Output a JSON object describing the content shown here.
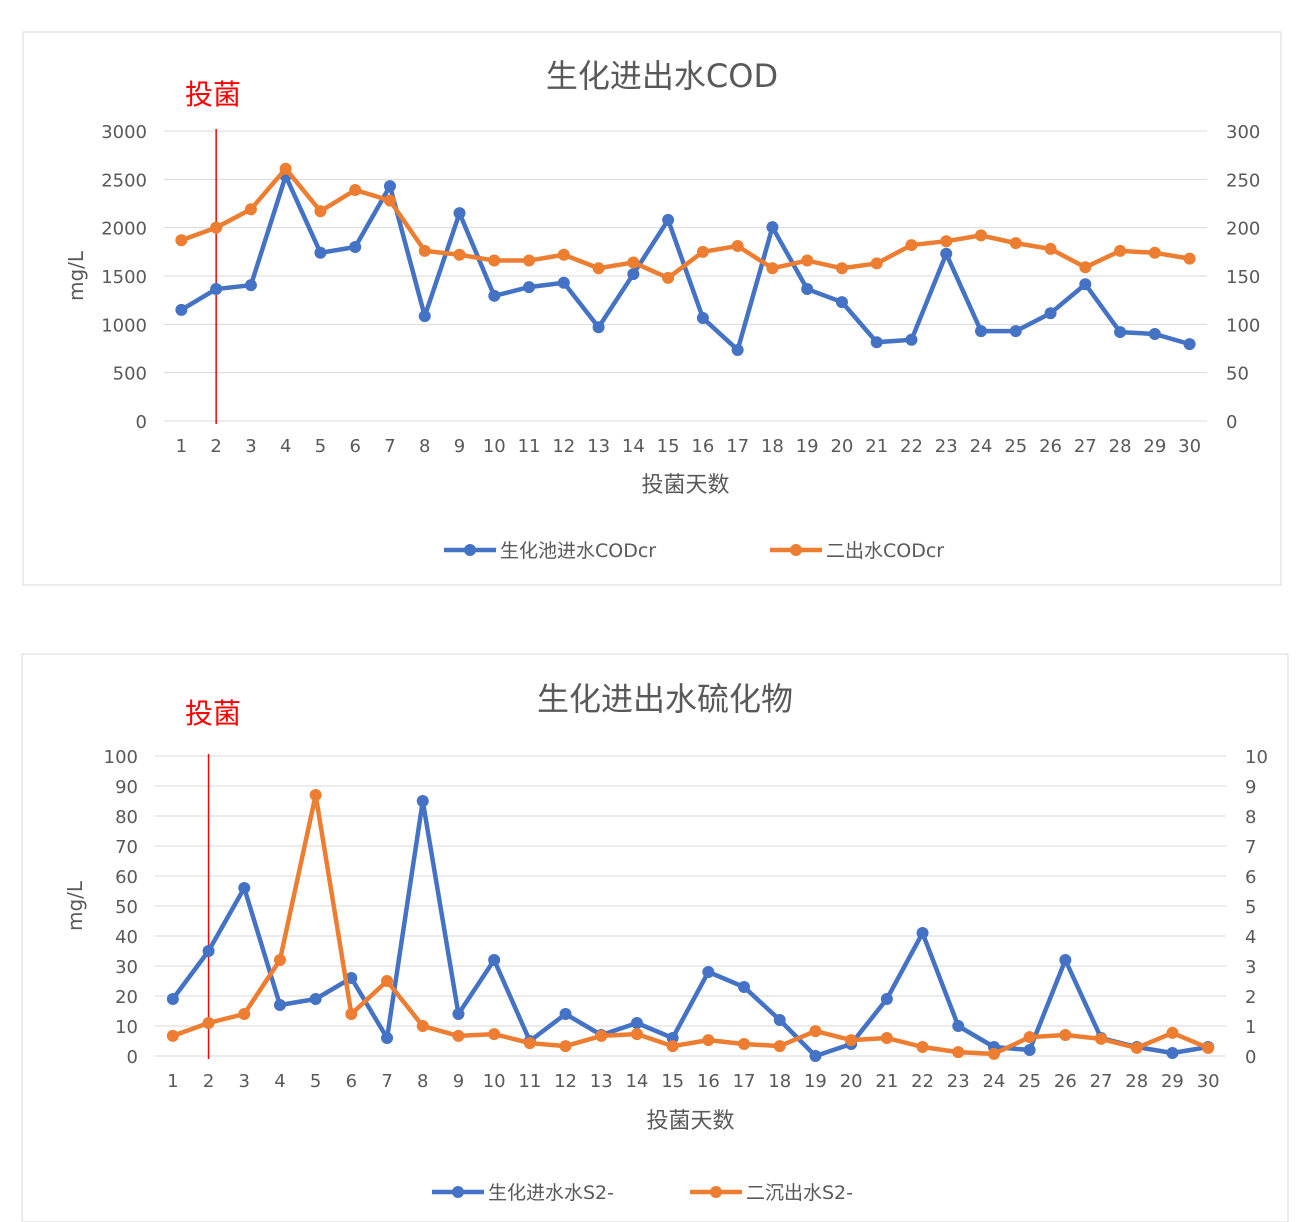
{
  "chart_data": [
    {
      "type": "line",
      "title": "生化进出水COD",
      "annotation": "投菌",
      "annotation_day": 2,
      "xlabel": "投菌天数",
      "ylabel": "mg/L",
      "categories": [
        1,
        2,
        3,
        4,
        5,
        6,
        7,
        8,
        9,
        10,
        11,
        12,
        13,
        14,
        15,
        16,
        17,
        18,
        19,
        20,
        21,
        22,
        23,
        24,
        25,
        26,
        27,
        28,
        29,
        30
      ],
      "ylim": [
        0,
        3000
      ],
      "yticks": [
        0,
        500,
        1000,
        1500,
        2000,
        2500,
        3000
      ],
      "y2lim": [
        0,
        300
      ],
      "y2ticks": [
        0,
        50,
        100,
        150,
        200,
        250,
        300
      ],
      "grid": true,
      "legend": "bottom",
      "series": [
        {
          "name": "生化池进水CODcr",
          "axis": "left",
          "color": "#4472C4",
          "values": [
            1150,
            1365,
            1405,
            2535,
            1740,
            1800,
            2430,
            1085,
            2150,
            1295,
            1385,
            1430,
            970,
            1520,
            2080,
            1065,
            735,
            2005,
            1365,
            1230,
            815,
            840,
            1730,
            930,
            930,
            1115,
            1415,
            920,
            900,
            795
          ]
        },
        {
          "name": "二出水CODcr",
          "axis": "right",
          "color": "#ED7D31",
          "values": [
            187,
            200,
            219,
            261,
            217,
            239,
            228,
            176,
            172,
            166,
            166,
            172,
            158,
            164,
            148,
            175,
            181,
            158,
            166,
            158,
            163,
            182,
            186,
            192,
            184,
            178,
            159,
            176,
            174,
            168
          ]
        }
      ]
    },
    {
      "type": "line",
      "title": "生化进出水硫化物",
      "annotation": "投菌",
      "annotation_day": 2,
      "xlabel": "投菌天数",
      "ylabel": "mg/L",
      "categories": [
        1,
        2,
        3,
        4,
        5,
        6,
        7,
        8,
        9,
        10,
        11,
        12,
        13,
        14,
        15,
        16,
        17,
        18,
        19,
        20,
        21,
        22,
        23,
        24,
        25,
        26,
        27,
        28,
        29,
        30
      ],
      "ylim": [
        0,
        100
      ],
      "yticks": [
        0,
        10,
        20,
        30,
        40,
        50,
        60,
        70,
        80,
        90,
        100
      ],
      "y2lim": [
        0,
        10
      ],
      "y2ticks": [
        0,
        1,
        2,
        3,
        4,
        5,
        6,
        7,
        8,
        9,
        10
      ],
      "grid": true,
      "legend": "bottom",
      "series": [
        {
          "name": "生化进水水S2-",
          "axis": "left",
          "color": "#4472C4",
          "values": [
            19,
            35,
            56,
            17,
            19,
            26,
            6,
            85,
            14,
            32,
            5,
            14,
            7,
            11,
            6,
            28,
            23,
            12,
            0,
            4,
            19,
            41,
            10,
            3,
            2,
            32,
            6,
            3,
            1,
            3
          ]
        },
        {
          "name": "二沉出水S2-",
          "axis": "right",
          "color": "#ED7D31",
          "values": [
            0.67,
            1.1,
            1.4,
            3.2,
            8.7,
            1.4,
            2.5,
            1.0,
            0.67,
            0.73,
            0.43,
            0.33,
            0.67,
            0.73,
            0.33,
            0.53,
            0.4,
            0.33,
            0.83,
            0.53,
            0.6,
            0.3,
            0.13,
            0.07,
            0.63,
            0.7,
            0.57,
            0.27,
            0.77,
            0.27
          ]
        }
      ]
    }
  ]
}
